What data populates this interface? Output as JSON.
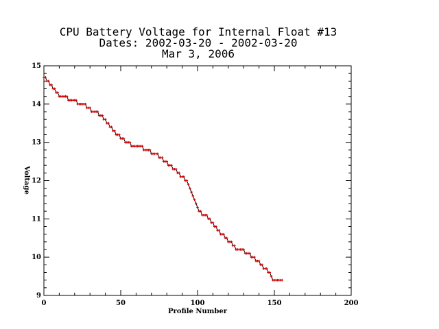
{
  "chart_data": {
    "type": "scatter",
    "title_lines": [
      "CPU Battery Voltage for Internal Float #13",
      "Dates:  2002-03-20 -  2002-03-20",
      "Mar  3, 2006"
    ],
    "xlabel": "Profile Number",
    "ylabel": "Voltage",
    "xlim": [
      0,
      200
    ],
    "ylim": [
      9,
      15
    ],
    "x_ticks": [
      "0",
      "50",
      "100",
      "150",
      "200"
    ],
    "y_ticks": [
      "9",
      "10",
      "11",
      "12",
      "13",
      "14",
      "15"
    ],
    "grid": false,
    "marker_color": "#cc0000",
    "line_color": "#000000",
    "series": [
      {
        "x": [
          0,
          1,
          2,
          3,
          4,
          5,
          6,
          7,
          8,
          9,
          10,
          11,
          12,
          13,
          14,
          15,
          16,
          17,
          18,
          19,
          20,
          21,
          22,
          23,
          24,
          25,
          26,
          27,
          28,
          29,
          30,
          31,
          32,
          33,
          34,
          35,
          36,
          37,
          38,
          39,
          40,
          41,
          42,
          43,
          44,
          45,
          46,
          47,
          48,
          49,
          50,
          51,
          52,
          53,
          54,
          55,
          56,
          57,
          58,
          59,
          60,
          61,
          62,
          63,
          64,
          65,
          66,
          67,
          68,
          69,
          70,
          71,
          72,
          73,
          74,
          75,
          76,
          77,
          78,
          79,
          80,
          81,
          82,
          83,
          84,
          85,
          86,
          87,
          88,
          89,
          90,
          91,
          92,
          93,
          94,
          95,
          96,
          97,
          98,
          99,
          100,
          101,
          102,
          103,
          104,
          105,
          106,
          107,
          108,
          109,
          110,
          111,
          112,
          113,
          114,
          115,
          116,
          117,
          118,
          119,
          120,
          121,
          122,
          123,
          124,
          125,
          126,
          127,
          128,
          129,
          130,
          131,
          132,
          133,
          134,
          135,
          136,
          137,
          138,
          139,
          140,
          141,
          142,
          143,
          144,
          145,
          146,
          147,
          148,
          149,
          150,
          151,
          152,
          153,
          154,
          155
        ],
        "y": [
          14.7,
          14.7,
          14.6,
          14.6,
          14.5,
          14.5,
          14.4,
          14.4,
          14.3,
          14.3,
          14.2,
          14.2,
          14.2,
          14.2,
          14.2,
          14.2,
          14.1,
          14.1,
          14.1,
          14.1,
          14.1,
          14.1,
          14.0,
          14.0,
          14.0,
          14.0,
          14.0,
          14.0,
          13.9,
          13.9,
          13.9,
          13.8,
          13.8,
          13.8,
          13.8,
          13.8,
          13.7,
          13.7,
          13.7,
          13.6,
          13.6,
          13.5,
          13.5,
          13.4,
          13.4,
          13.3,
          13.3,
          13.2,
          13.2,
          13.2,
          13.1,
          13.1,
          13.1,
          13.0,
          13.0,
          13.0,
          13.0,
          12.9,
          12.9,
          12.9,
          12.9,
          12.9,
          12.9,
          12.9,
          12.9,
          12.8,
          12.8,
          12.8,
          12.8,
          12.8,
          12.7,
          12.7,
          12.7,
          12.7,
          12.7,
          12.6,
          12.6,
          12.6,
          12.5,
          12.5,
          12.5,
          12.4,
          12.4,
          12.4,
          12.3,
          12.3,
          12.3,
          12.2,
          12.2,
          12.1,
          12.1,
          12.1,
          12.0,
          12.0,
          11.9,
          11.8,
          11.7,
          11.6,
          11.5,
          11.4,
          11.3,
          11.2,
          11.2,
          11.1,
          11.1,
          11.1,
          11.1,
          11.0,
          11.0,
          10.9,
          10.9,
          10.8,
          10.8,
          10.7,
          10.7,
          10.6,
          10.6,
          10.6,
          10.5,
          10.5,
          10.4,
          10.4,
          10.4,
          10.3,
          10.3,
          10.2,
          10.2,
          10.2,
          10.2,
          10.2,
          10.2,
          10.1,
          10.1,
          10.1,
          10.1,
          10.0,
          10.0,
          10.0,
          9.9,
          9.9,
          9.9,
          9.8,
          9.8,
          9.7,
          9.7,
          9.7,
          9.6,
          9.6,
          9.5,
          9.4,
          9.4,
          9.4,
          9.4,
          9.4,
          9.4,
          9.4
        ]
      }
    ]
  }
}
